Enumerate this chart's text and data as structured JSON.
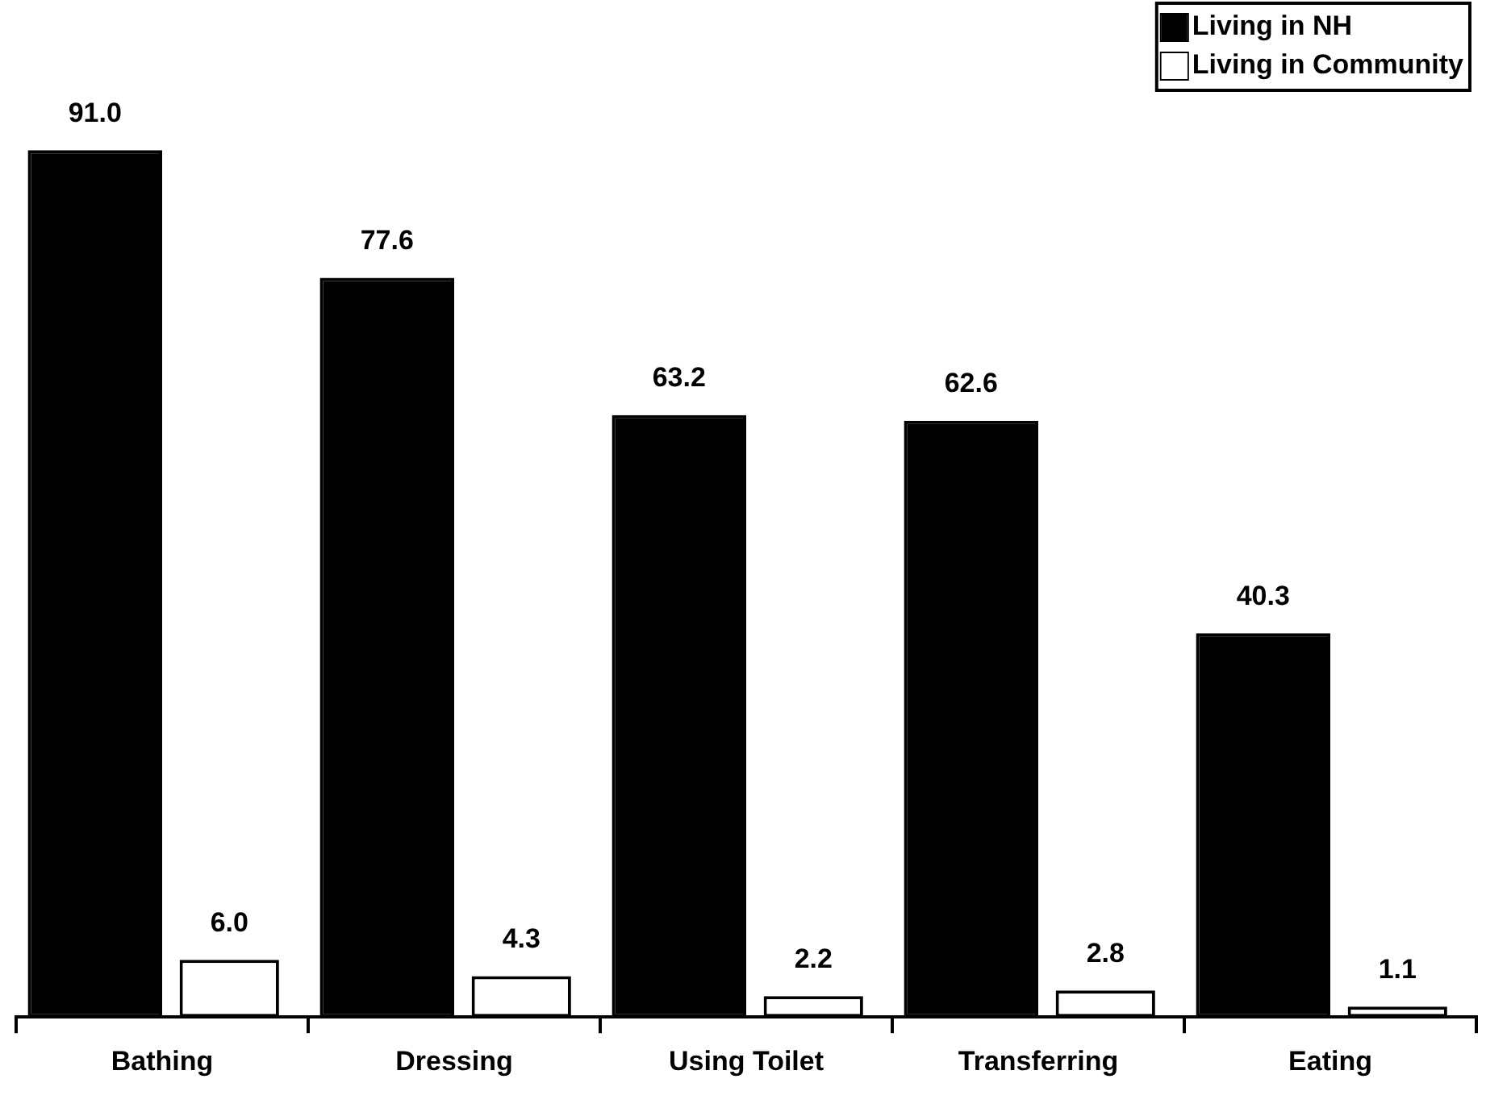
{
  "chart_data": {
    "type": "bar",
    "categories": [
      "Bathing",
      "Dressing",
      "Using Toilet",
      "Transferring",
      "Eating"
    ],
    "series": [
      {
        "name": "Living in NH",
        "color": "#000000",
        "values": [
          91.0,
          77.6,
          63.2,
          62.6,
          40.3
        ],
        "value_labels": [
          "91.0",
          "77.6",
          "63.2",
          "62.6",
          "40.3"
        ]
      },
      {
        "name": "Living in Community",
        "color": "#ffffff",
        "values": [
          6.0,
          4.3,
          2.2,
          2.8,
          1.1
        ],
        "value_labels": [
          "6.0",
          "4.3",
          "2.2",
          "2.8",
          "1.1"
        ]
      }
    ],
    "legend": "top right",
    "grid": false,
    "tick_labels": "x"
  }
}
